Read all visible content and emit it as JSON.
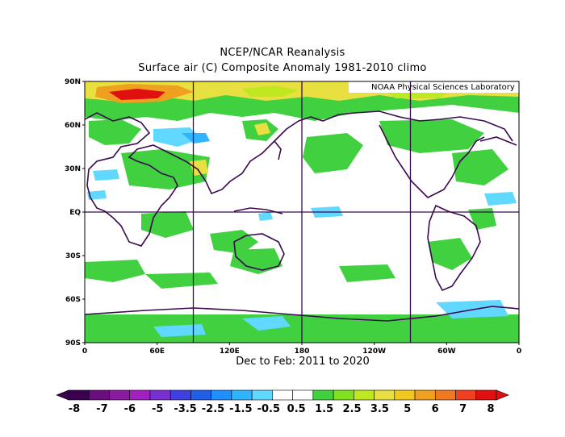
{
  "title_line1": "NCEP/NCAR Reanalysis",
  "title_line2": "Surface air (C) Composite Anomaly 1981-2010 climo",
  "subtitle": "Dec to Feb: 2011 to 2020",
  "watermark": "NOAA Physical Sciences Laboratory",
  "lat_labels": [
    "90N",
    "60N",
    "30N",
    "EQ",
    "30S",
    "60S",
    "90S"
  ],
  "lon_labels": [
    "0",
    "60E",
    "120E",
    "180",
    "120W",
    "60W",
    "0"
  ],
  "colorbar": {
    "labels": [
      "-8",
      "-7",
      "-6",
      "-5",
      "-3.5",
      "-2.5",
      "-1.5",
      "-0.5",
      "0.5",
      "1.5",
      "2.5",
      "3.5",
      "5",
      "6",
      "7",
      "8"
    ],
    "colors": [
      "#3c0050",
      "#6a0d7e",
      "#8a1a9e",
      "#a020c0",
      "#7a2fd0",
      "#4040e0",
      "#2060e8",
      "#1e90ff",
      "#30b4ff",
      "#60d8ff",
      "#ffffff",
      "#ffffff",
      "#40d040",
      "#80e020",
      "#c0e820",
      "#e8e040",
      "#f0c820",
      "#f0a020",
      "#f07820",
      "#f04020",
      "#e01010"
    ],
    "under_color": "#3c0050",
    "over_color": "#e01010"
  }
}
